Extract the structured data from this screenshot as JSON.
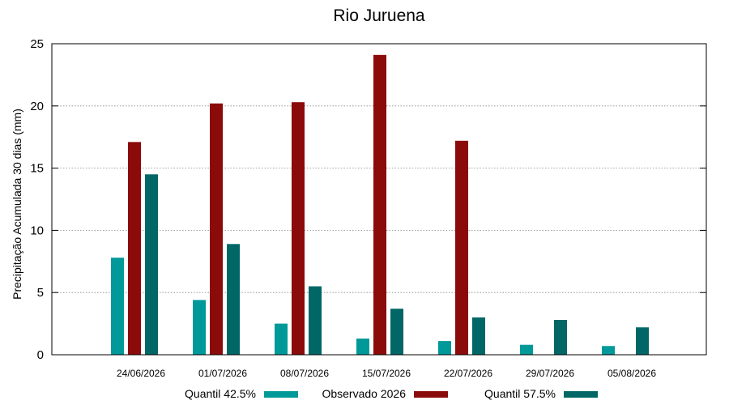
{
  "chart_data": {
    "type": "bar",
    "title": "Rio Juruena",
    "xlabel": "",
    "ylabel": "Precipitação Acumulada 30 dias (mm)",
    "ylim": [
      0,
      25
    ],
    "yticks": [
      0,
      5,
      10,
      15,
      20,
      25
    ],
    "grid": true,
    "legend_position": "bottom",
    "categories": [
      "24/06/2026",
      "01/07/2026",
      "08/07/2026",
      "15/07/2026",
      "22/07/2026",
      "29/07/2026",
      "05/08/2026"
    ],
    "series": [
      {
        "name": "Quantil 42.5%",
        "color": "#009999",
        "values": [
          7.8,
          4.4,
          2.5,
          1.3,
          1.1,
          0.8,
          0.7
        ]
      },
      {
        "name": "Observado 2026",
        "color": "#8b0a0a",
        "values": [
          17.1,
          20.2,
          20.3,
          24.1,
          17.2,
          null,
          null
        ]
      },
      {
        "name": "Quantil 57.5%",
        "color": "#006666",
        "values": [
          14.5,
          8.9,
          5.5,
          3.7,
          3.0,
          2.8,
          2.2
        ]
      }
    ]
  }
}
